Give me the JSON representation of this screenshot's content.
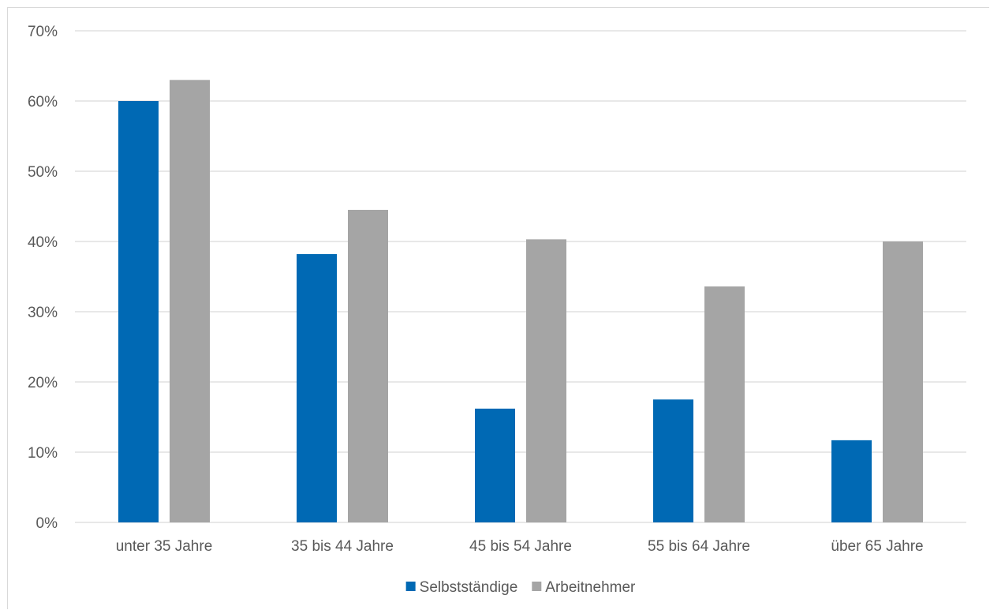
{
  "chart_data": {
    "type": "bar",
    "title": "",
    "xlabel": "",
    "ylabel": "",
    "categories": [
      "unter 35 Jahre",
      "35 bis 44 Jahre",
      "45 bis 54 Jahre",
      "55 bis 64 Jahre",
      "über 65 Jahre"
    ],
    "series": [
      {
        "name": "Selbstständige",
        "color": "#0069b4",
        "values": [
          60,
          38.2,
          16.2,
          17.5,
          11.7
        ]
      },
      {
        "name": "Arbeitnehmer",
        "color": "#a5a5a5",
        "values": [
          63,
          44.5,
          40.3,
          33.6,
          40
        ]
      }
    ],
    "ylim": [
      0,
      70
    ],
    "yticks": [
      0,
      10,
      20,
      30,
      40,
      50,
      60,
      70
    ],
    "ytick_labels": [
      "0%",
      "10%",
      "20%",
      "30%",
      "40%",
      "50%",
      "60%",
      "70%"
    ],
    "grid": true,
    "legend_position": "bottom",
    "gridline_color": "#d9d9d9"
  }
}
